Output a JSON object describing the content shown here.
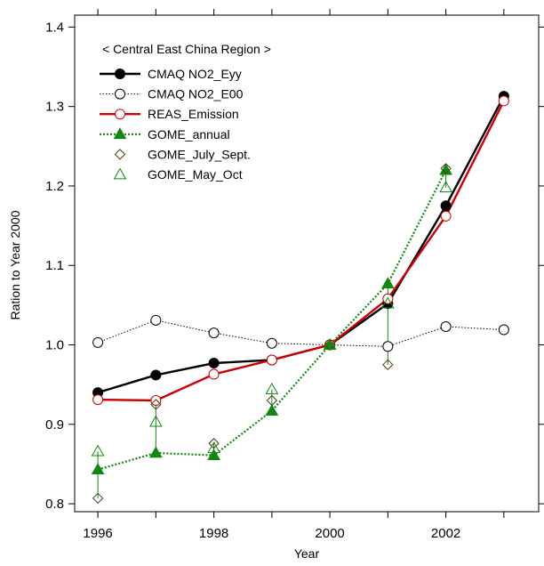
{
  "chart_data": {
    "type": "line",
    "title": "",
    "xlabel": "Year",
    "ylabel": "Ration to Year 2000",
    "xlim": [
      1995.6,
      2003.6
    ],
    "ylim": [
      0.79,
      1.415
    ],
    "x_ticks": [
      1996,
      1997,
      1998,
      1999,
      2000,
      2001,
      2002,
      2003
    ],
    "x_tick_labels": [
      "1996",
      "1998",
      "2000",
      "2002"
    ],
    "y_ticks": [
      0.8,
      0.9,
      1.0,
      1.1,
      1.2,
      1.3,
      1.4
    ],
    "y_tick_labels": [
      "0.8",
      "0.9",
      "1.0",
      "1.1",
      "1.2",
      "1.3",
      "1.4"
    ],
    "grid": false,
    "legend_position": "top-left",
    "legend_title": "< Central East China Region >",
    "series": [
      {
        "name": "CMAQ NO2_Eyy",
        "color": "#000000",
        "line": "solid",
        "marker": "filled-circle",
        "x": [
          1996,
          1997,
          1998,
          1999,
          2000,
          2001,
          2002,
          2003
        ],
        "y": [
          0.94,
          0.962,
          0.977,
          0.981,
          1.0,
          1.052,
          1.175,
          1.313
        ]
      },
      {
        "name": "CMAQ NO2_E00",
        "color": "#000000",
        "line": "dotted",
        "marker": "open-circle",
        "x": [
          1996,
          1997,
          1998,
          1999,
          2000,
          2001,
          2002,
          2003
        ],
        "y": [
          1.003,
          1.031,
          1.015,
          1.002,
          1.0,
          0.998,
          1.023,
          1.019
        ]
      },
      {
        "name": "REAS_Emission",
        "color": "#cc0000",
        "line": "solid",
        "marker": "open-circle",
        "x": [
          1996,
          1997,
          1998,
          1999,
          2000,
          2001,
          2002,
          2003
        ],
        "y": [
          0.931,
          0.93,
          0.963,
          0.981,
          1.0,
          1.058,
          1.162,
          1.307
        ]
      },
      {
        "name": "GOME_annual",
        "color": "#118811",
        "line": "dotted",
        "marker": "filled-triangle",
        "x": [
          1996,
          1997,
          1998,
          1999,
          2000,
          2001,
          2002
        ],
        "y": [
          0.843,
          0.864,
          0.861,
          0.917,
          1.0,
          1.077,
          1.22
        ]
      },
      {
        "name": "GOME_July_Sept.",
        "color": "#4a3a10",
        "line": "none",
        "marker": "open-diamond",
        "x": [
          1996,
          1997,
          1998,
          1999,
          2000,
          2001,
          2002
        ],
        "y": [
          0.807,
          0.925,
          0.876,
          0.93,
          1.0,
          0.975,
          1.222
        ]
      },
      {
        "name": "GOME_May_Oct",
        "color": "#118811",
        "line": "none",
        "marker": "open-triangle",
        "x": [
          1996,
          1997,
          1998,
          1999,
          2000,
          2001,
          2002
        ],
        "y": [
          0.866,
          0.903,
          0.87,
          0.944,
          1.0,
          1.052,
          1.198
        ]
      }
    ]
  }
}
